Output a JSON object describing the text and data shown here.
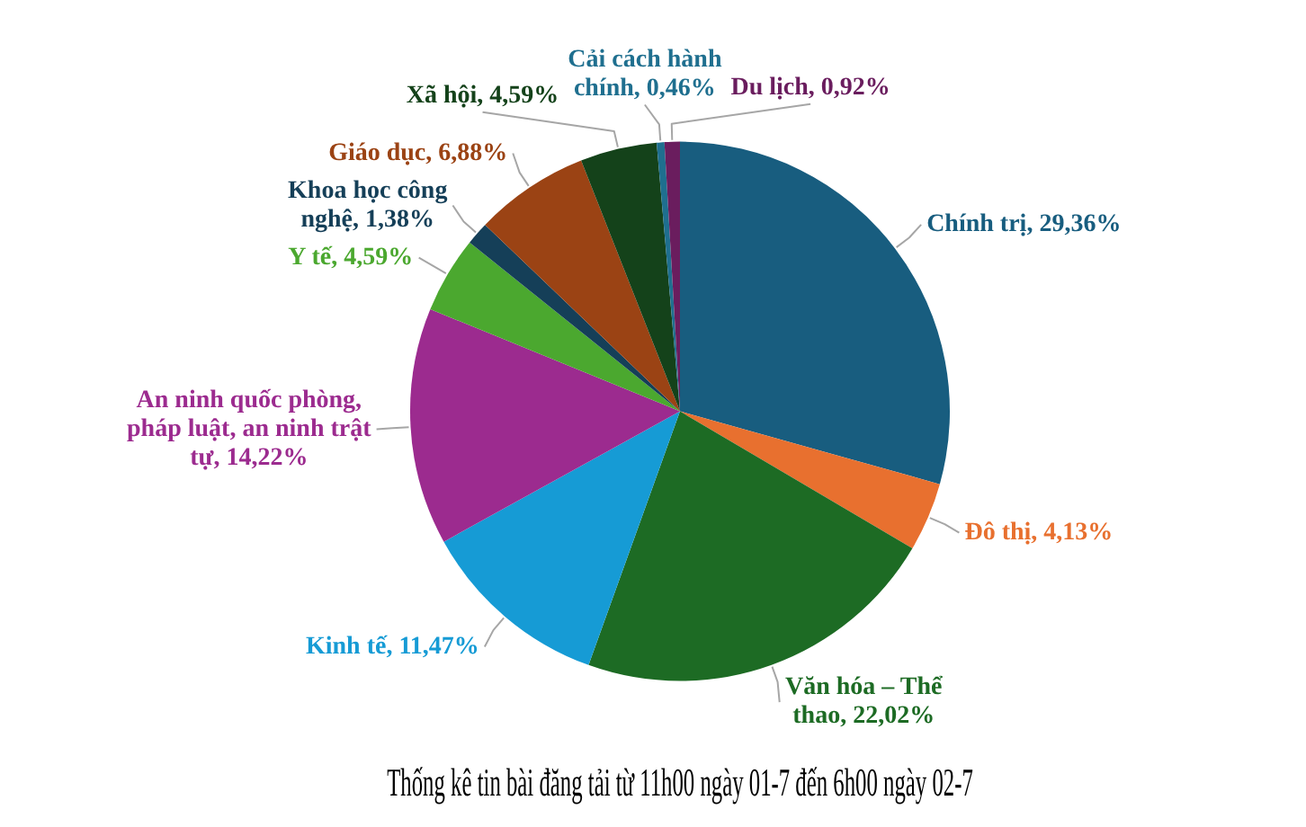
{
  "chart_data": {
    "type": "pie",
    "title": "Thống kê tin bài đăng tải từ 11h00 ngày 01-7 đến 6h00 ngày 02-7",
    "categories": [
      "Chính trị",
      "Đô thị",
      "Văn hóa – Thể thao",
      "Kinh tế",
      "An ninh quốc phòng, pháp luật, an ninh trật tự",
      "Y tế",
      "Khoa học công nghệ",
      "Giáo dục",
      "Xã hội",
      "Cải cách hành chính",
      "Du lịch"
    ],
    "values": [
      29.36,
      4.13,
      22.02,
      11.47,
      14.22,
      4.59,
      1.38,
      6.88,
      4.59,
      0.46,
      0.92
    ],
    "colors": [
      "#185d7f",
      "#e8702f",
      "#1d6b24",
      "#169bd5",
      "#9c2b8f",
      "#4ba82f",
      "#153f58",
      "#9b4314",
      "#14421a",
      "#1f6f8f",
      "#6a1d5e"
    ],
    "value_labels": [
      "29,36%",
      "4,13%",
      "22,02%",
      "11,47%",
      "14,22%",
      "4,59%",
      "1,38%",
      "6,88%",
      "4,59%",
      "0,46%",
      "0,92%"
    ]
  }
}
